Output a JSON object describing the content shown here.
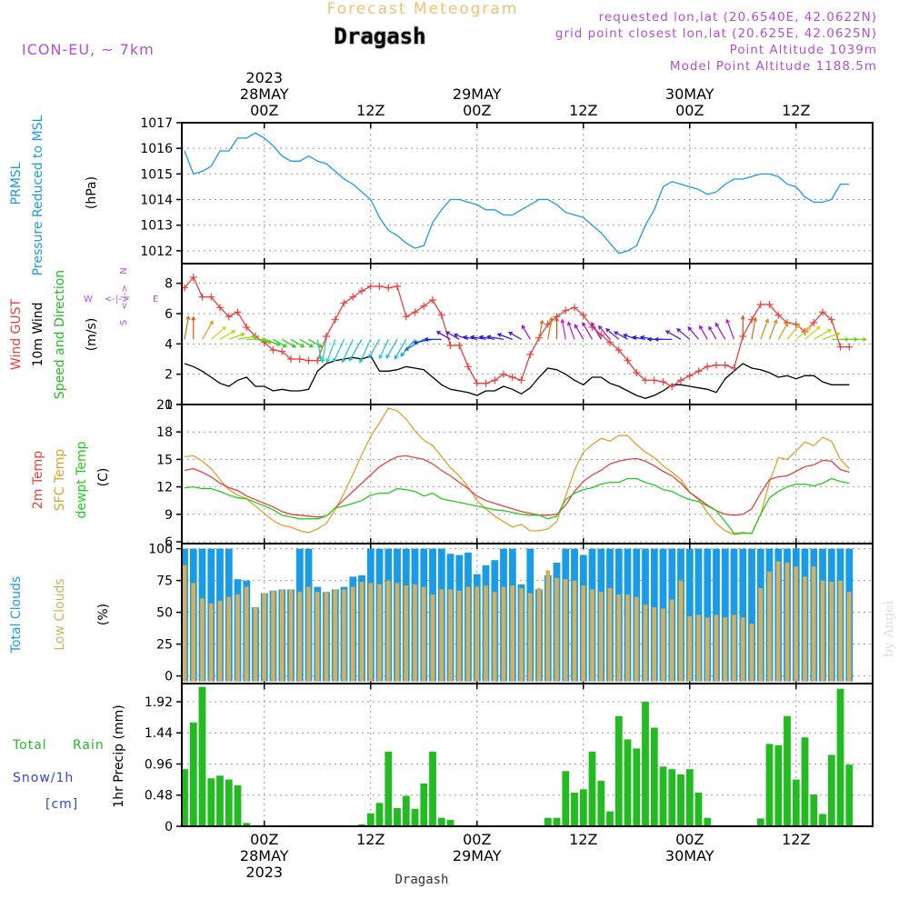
{
  "header": {
    "title_faded": "Forecast Meteogram",
    "location": "Dragash",
    "model": "ICON-EU, ~ 7km",
    "requested": "requested lon,lat (20.6540E, 42.0622N)",
    "grid_point": "grid point closest lon,lat (20.625E, 42.0625N)",
    "point_alt": "Point Altitude 1039m",
    "model_alt": "Model Point Altitude 1188.5m"
  },
  "footer_location": "Dragash",
  "watermark": "by Angel",
  "colors": {
    "pressure": "#1a9be6",
    "gust": "#e8403c",
    "wind": "#000000",
    "wind_label_green": "#22bb22",
    "temp2m": "#e8403c",
    "sfc_temp": "#e0a030",
    "dewpoint": "#22cc22",
    "total_clouds": "#1a9be6",
    "low_clouds": "#d8ae5a",
    "rain": "#22bb22",
    "snow_label": "#3344dd",
    "purple": "#b04fd8",
    "faded_title": "#f0c070"
  },
  "time_axis": {
    "top_labels": [
      {
        "t": 9,
        "lines": [
          "2023",
          "28MAY",
          "00Z"
        ]
      },
      {
        "t": 21,
        "lines": [
          "12Z"
        ]
      },
      {
        "t": 33,
        "lines": [
          "29MAY",
          "00Z"
        ]
      },
      {
        "t": 45,
        "lines": [
          "12Z"
        ]
      },
      {
        "t": 57,
        "lines": [
          "30MAY",
          "00Z"
        ]
      },
      {
        "t": 69,
        "lines": [
          "12Z"
        ]
      }
    ],
    "bottom_labels": [
      {
        "t": 9,
        "lines": [
          "00Z",
          "28MAY",
          "2023"
        ]
      },
      {
        "t": 21,
        "lines": [
          "12Z"
        ]
      },
      {
        "t": 33,
        "lines": [
          "00Z",
          "29MAY"
        ]
      },
      {
        "t": 45,
        "lines": [
          "12Z"
        ]
      },
      {
        "t": 57,
        "lines": [
          "00Z",
          "30MAY"
        ]
      },
      {
        "t": 69,
        "lines": [
          "12Z"
        ]
      }
    ]
  },
  "panels": {
    "pressure": {
      "labels_blue": [
        "PRMSL",
        "Pressure Reduced to MSL"
      ],
      "unit": "(hPa)",
      "yticks": [
        1012,
        1013,
        1014,
        1015,
        1016,
        1017
      ]
    },
    "wind": {
      "label_gust": "Wind GUST",
      "label_wind": "10m Wind",
      "label_dir": "Speed and Direction",
      "unit": "(m/s)",
      "compass": {
        "n": "N",
        "s": "S",
        "w": "W",
        "e": "E",
        "arrows_h": "<-|->",
        "arrows_v": "<-|->"
      },
      "yticks": [
        0,
        2,
        4,
        6,
        8
      ]
    },
    "temp": {
      "label_2m": "2m Temp",
      "label_sfc": "SFC Temp",
      "label_dew": "dewpt Temp",
      "unit": "(C)",
      "yticks": [
        6,
        9,
        12,
        15,
        18,
        21
      ]
    },
    "clouds": {
      "label_total": "Total Clouds",
      "label_low": "Low Clouds",
      "unit": "(%)",
      "yticks": [
        0,
        25,
        50,
        75,
        100
      ]
    },
    "precip": {
      "label_total": "Total",
      "label_rain": "Rain",
      "label_snow": "Snow/1h",
      "label_cm": "[cm]",
      "axis_label": "1hr Precip (mm)",
      "yticks": [
        "0",
        "0.48",
        "0.96",
        "1.44",
        "1.92"
      ]
    }
  },
  "chart_data": {
    "type": "line",
    "title": "Dragash",
    "x_axis": "hours from 2023-05-27 15Z (hourly, t=0..75)",
    "pressure_hPa": [
      1015.9,
      1015.0,
      1015.1,
      1015.3,
      1015.9,
      1015.9,
      1016.4,
      1016.4,
      1016.6,
      1016.4,
      1016.1,
      1015.7,
      1015.5,
      1015.5,
      1015.7,
      1015.5,
      1015.4,
      1015.1,
      1014.8,
      1014.6,
      1014.3,
      1014.0,
      1013.3,
      1012.8,
      1012.6,
      1012.3,
      1012.1,
      1012.2,
      1013.1,
      1013.6,
      1014.0,
      1014.0,
      1013.9,
      1013.8,
      1013.6,
      1013.6,
      1013.4,
      1013.4,
      1013.6,
      1013.8,
      1014.0,
      1014.0,
      1013.8,
      1013.5,
      1013.4,
      1013.3,
      1013.0,
      1012.7,
      1012.3,
      1011.9,
      1012.0,
      1012.2,
      1013.0,
      1013.6,
      1014.5,
      1014.7,
      1014.6,
      1014.5,
      1014.4,
      1014.2,
      1014.3,
      1014.6,
      1014.8,
      1014.8,
      1014.9,
      1015.0,
      1015.0,
      1014.9,
      1014.6,
      1014.5,
      1014.1,
      1013.9,
      1013.9,
      1014.0,
      1014.6,
      1014.6
    ],
    "gust_ms": [
      7.7,
      8.4,
      7.1,
      7.1,
      6.4,
      5.8,
      6.1,
      5.1,
      4.5,
      4.1,
      3.6,
      3.5,
      3.0,
      3.0,
      2.9,
      2.9,
      4.5,
      5.6,
      6.7,
      7.1,
      7.5,
      7.8,
      7.8,
      7.7,
      7.8,
      5.8,
      6.1,
      6.5,
      6.9,
      5.9,
      3.9,
      3.9,
      2.5,
      1.4,
      1.4,
      1.6,
      2.0,
      1.8,
      1.6,
      3.3,
      4.4,
      5.3,
      5.8,
      6.2,
      6.4,
      5.9,
      5.1,
      4.6,
      4.1,
      3.6,
      2.9,
      2.1,
      1.6,
      1.6,
      1.5,
      1.2,
      1.6,
      1.9,
      2.2,
      2.5,
      2.6,
      2.6,
      2.4,
      4.5,
      5.6,
      6.6,
      6.6,
      5.9,
      5.4,
      5.3,
      4.8,
      5.4,
      6.1,
      5.6,
      3.8,
      3.8
    ],
    "wind_ms": [
      2.7,
      2.5,
      2.2,
      1.8,
      1.4,
      1.2,
      1.6,
      1.8,
      1.2,
      1.2,
      0.9,
      1.0,
      0.9,
      0.9,
      1.0,
      2.2,
      2.7,
      2.9,
      3.0,
      3.1,
      3.0,
      3.2,
      2.2,
      2.2,
      2.3,
      2.5,
      2.4,
      2.3,
      1.8,
      1.3,
      1.0,
      0.9,
      0.8,
      0.6,
      0.9,
      0.9,
      1.2,
      1.0,
      0.7,
      1.1,
      1.8,
      2.4,
      2.3,
      2.0,
      1.6,
      1.3,
      1.8,
      1.8,
      1.4,
      1.2,
      0.9,
      0.6,
      0.4,
      0.6,
      0.9,
      1.3,
      1.3,
      1.2,
      1.1,
      1.0,
      0.8,
      1.7,
      2.2,
      2.7,
      2.4,
      2.3,
      2.1,
      1.8,
      1.9,
      1.7,
      1.9,
      1.9,
      1.5,
      1.3,
      1.3,
      1.3
    ],
    "wind_dir_deg": [
      190,
      180,
      210,
      230,
      240,
      250,
      260,
      270,
      280,
      290,
      300,
      300,
      300,
      300,
      300,
      350,
      10,
      20,
      25,
      25,
      30,
      25,
      30,
      25,
      30,
      30,
      40,
      60,
      80,
      90,
      120,
      120,
      110,
      100,
      100,
      100,
      100,
      110,
      120,
      150,
      190,
      190,
      180,
      170,
      160,
      150,
      150,
      150,
      140,
      130,
      120,
      110,
      100,
      100,
      90,
      90,
      120,
      130,
      140,
      150,
      150,
      150,
      160,
      180,
      190,
      200,
      200,
      210,
      220,
      230,
      230,
      240,
      250,
      270,
      270,
      270
    ],
    "temp2m_C": [
      13.8,
      14.0,
      13.6,
      13.1,
      12.4,
      11.9,
      11.6,
      11.0,
      10.6,
      10.2,
      9.8,
      9.3,
      9.0,
      8.9,
      8.8,
      8.7,
      8.8,
      9.7,
      10.6,
      11.5,
      12.4,
      13.3,
      14.2,
      14.8,
      15.3,
      15.4,
      15.2,
      15.0,
      14.5,
      13.8,
      13.2,
      12.5,
      11.8,
      11.0,
      10.5,
      10.2,
      9.9,
      9.6,
      9.3,
      9.1,
      8.9,
      8.9,
      9.0,
      10.0,
      11.5,
      12.6,
      13.3,
      13.8,
      14.5,
      14.8,
      15.0,
      15.1,
      14.8,
      14.3,
      13.7,
      13.2,
      12.4,
      11.4,
      10.7,
      10.0,
      9.4,
      9.0,
      8.9,
      9.0,
      9.6,
      11.3,
      12.8,
      13.1,
      13.2,
      13.7,
      14.2,
      14.4,
      14.9,
      14.8,
      13.9,
      13.6
    ],
    "sfc_temp_C": [
      15.3,
      15.4,
      14.8,
      14.0,
      12.8,
      11.7,
      11.1,
      10.7,
      9.9,
      9.1,
      8.3,
      7.8,
      7.6,
      7.2,
      7.0,
      7.4,
      8.0,
      9.5,
      11.3,
      13.4,
      15.5,
      17.5,
      19.0,
      20.6,
      20.3,
      19.4,
      18.1,
      17.1,
      16.5,
      15.3,
      14.1,
      13.2,
      12.0,
      10.5,
      9.6,
      8.8,
      8.2,
      7.6,
      7.9,
      7.2,
      7.2,
      7.4,
      8.2,
      11.0,
      13.8,
      15.8,
      16.6,
      17.3,
      17.0,
      17.6,
      17.6,
      16.6,
      15.8,
      15.2,
      14.3,
      13.6,
      12.8,
      11.4,
      10.6,
      9.2,
      8.0,
      7.2,
      6.8,
      6.9,
      6.9,
      9.0,
      12.5,
      15.2,
      15.0,
      15.9,
      16.9,
      16.5,
      17.4,
      17.0,
      15.0,
      14.0
    ],
    "dewpoint_C": [
      11.9,
      12.0,
      11.8,
      11.8,
      11.5,
      11.1,
      10.8,
      10.7,
      10.3,
      9.9,
      9.5,
      8.9,
      8.7,
      8.5,
      8.5,
      8.5,
      8.8,
      9.7,
      9.9,
      10.2,
      10.5,
      11.1,
      11.3,
      11.3,
      11.8,
      11.7,
      11.5,
      11.0,
      11.3,
      10.7,
      10.5,
      10.3,
      10.1,
      9.9,
      9.7,
      9.5,
      9.4,
      9.2,
      9.0,
      8.9,
      8.9,
      8.5,
      8.8,
      10.6,
      11.3,
      11.7,
      11.9,
      12.3,
      12.5,
      12.5,
      12.9,
      12.9,
      12.5,
      12.2,
      11.7,
      11.5,
      11.0,
      10.6,
      10.4,
      9.9,
      9.4,
      8.2,
      6.9,
      7.0,
      6.9,
      9.0,
      10.8,
      11.5,
      12.0,
      12.3,
      12.3,
      12.1,
      12.4,
      12.9,
      12.6,
      12.4
    ],
    "total_clouds_pct": [
      100,
      100,
      100,
      100,
      100,
      100,
      76,
      75,
      54,
      65,
      67,
      68,
      68,
      100,
      100,
      70,
      66,
      68,
      70,
      78,
      79,
      100,
      100,
      100,
      100,
      100,
      100,
      100,
      100,
      100,
      96,
      95,
      97,
      80,
      87,
      91,
      100,
      100,
      72,
      100,
      68,
      79,
      89,
      100,
      100,
      95,
      100,
      100,
      100,
      100,
      100,
      100,
      100,
      100,
      100,
      100,
      100,
      100,
      100,
      100,
      100,
      100,
      100,
      100,
      100,
      100,
      100,
      100,
      100,
      100,
      100,
      100,
      100,
      100,
      100,
      100
    ],
    "low_clouds_pct": [
      87,
      73,
      61,
      57,
      59,
      62,
      64,
      70,
      54,
      65,
      67,
      68,
      68,
      66,
      70,
      66,
      66,
      68,
      68,
      70,
      74,
      73,
      72,
      75,
      73,
      71,
      72,
      70,
      64,
      68,
      68,
      67,
      70,
      70,
      71,
      66,
      70,
      71,
      69,
      65,
      69,
      83,
      77,
      76,
      75,
      71,
      68,
      66,
      69,
      64,
      64,
      62,
      56,
      54,
      53,
      60,
      75,
      47,
      48,
      46,
      48,
      46,
      48,
      46,
      41,
      69,
      82,
      90,
      89,
      86,
      78,
      86,
      75,
      74,
      75,
      66
    ],
    "precip_mm": [
      0.88,
      1.6,
      2.15,
      0.74,
      0.78,
      0.72,
      0.63,
      0.05,
      0,
      0,
      0,
      0,
      0,
      0,
      0,
      0,
      0,
      0,
      0,
      0,
      0.03,
      0.2,
      0.36,
      1.15,
      0.28,
      0.47,
      0.27,
      0.66,
      1.15,
      0.13,
      0.1,
      0,
      0,
      0,
      0,
      0,
      0,
      0,
      0,
      0,
      0,
      0.13,
      0.13,
      0.85,
      0.52,
      0.57,
      1.15,
      0.7,
      0.23,
      1.7,
      1.34,
      1.2,
      1.92,
      1.52,
      0.92,
      0.88,
      0.8,
      0.88,
      0.52,
      0.13,
      0,
      0,
      0,
      0,
      0,
      0.12,
      1.27,
      1.25,
      1.7,
      0.72,
      1.37,
      0.49,
      0.19,
      1.1,
      2.12,
      0.95
    ]
  }
}
